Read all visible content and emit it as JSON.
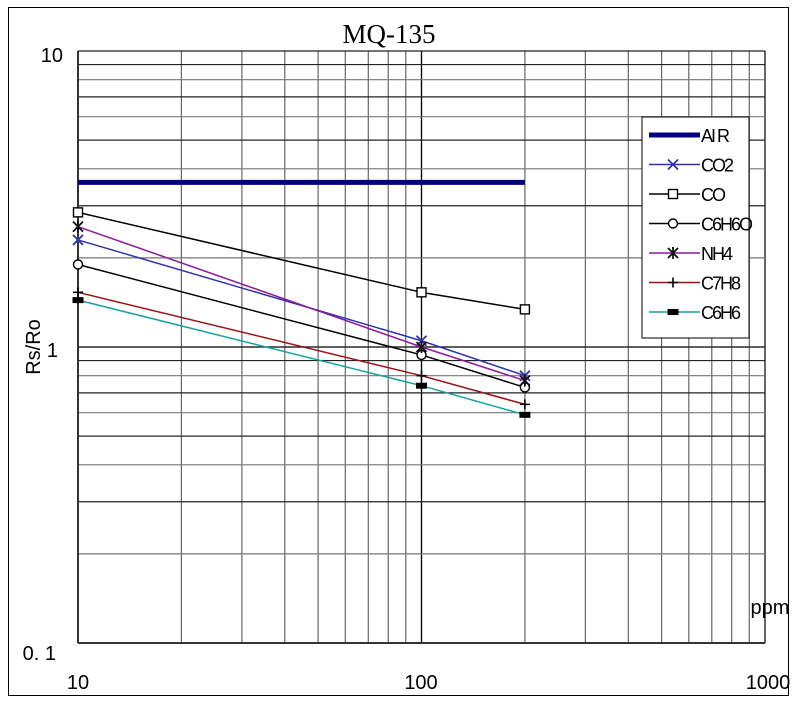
{
  "chart_data": {
    "type": "line",
    "title": "MQ-135",
    "xlabel": "ppm",
    "ylabel": "Rs/Ro",
    "xscale": "log",
    "yscale": "log",
    "xlim": [
      10,
      1000
    ],
    "ylim": [
      0.1,
      10
    ],
    "x_tick_labels": [
      "10",
      "100",
      "1000"
    ],
    "y_tick_labels": [
      "10",
      "1",
      "0. 1"
    ],
    "grid": true,
    "legend_position": "upper right (inside plot)",
    "series": [
      {
        "name": "AI R",
        "color": "#000080",
        "marker": "none",
        "line_width": 5,
        "x": [
          10,
          200
        ],
        "y": [
          3.6,
          3.6
        ]
      },
      {
        "name": "CO2",
        "color": "#3333aa",
        "marker": "x",
        "line_width": 1.5,
        "x": [
          10,
          100,
          200
        ],
        "y": [
          2.3,
          1.05,
          0.8
        ]
      },
      {
        "name": "CO",
        "color": "#000000",
        "marker": "square",
        "line_width": 1.5,
        "x": [
          10,
          100,
          200
        ],
        "y": [
          2.85,
          1.53,
          1.34
        ]
      },
      {
        "name": "C6H6O",
        "color": "#000000",
        "marker": "circle",
        "line_width": 1.5,
        "x": [
          10,
          100,
          200
        ],
        "y": [
          1.9,
          0.94,
          0.73
        ]
      },
      {
        "name": "NH4",
        "color": "#8e1a9e",
        "marker": "asterisk",
        "line_width": 1.5,
        "x": [
          10,
          100,
          200
        ],
        "y": [
          2.55,
          1.0,
          0.77
        ]
      },
      {
        "name": "C7H8",
        "color": "#9b1010",
        "marker": "plus",
        "line_width": 1.5,
        "x": [
          10,
          100,
          200
        ],
        "y": [
          1.53,
          0.8,
          0.64
        ]
      },
      {
        "name": "C6H6",
        "color": "#17a0a0",
        "marker": "dash",
        "line_width": 1.5,
        "x": [
          10,
          100,
          200
        ],
        "y": [
          1.44,
          0.74,
          0.59
        ]
      }
    ]
  },
  "legend": {
    "items": [
      {
        "label": "AI R"
      },
      {
        "label": "CO2"
      },
      {
        "label": "CO"
      },
      {
        "label": "C6H6O"
      },
      {
        "label": "NH4"
      },
      {
        "label": "C7H8"
      },
      {
        "label": "C6H6"
      }
    ]
  }
}
